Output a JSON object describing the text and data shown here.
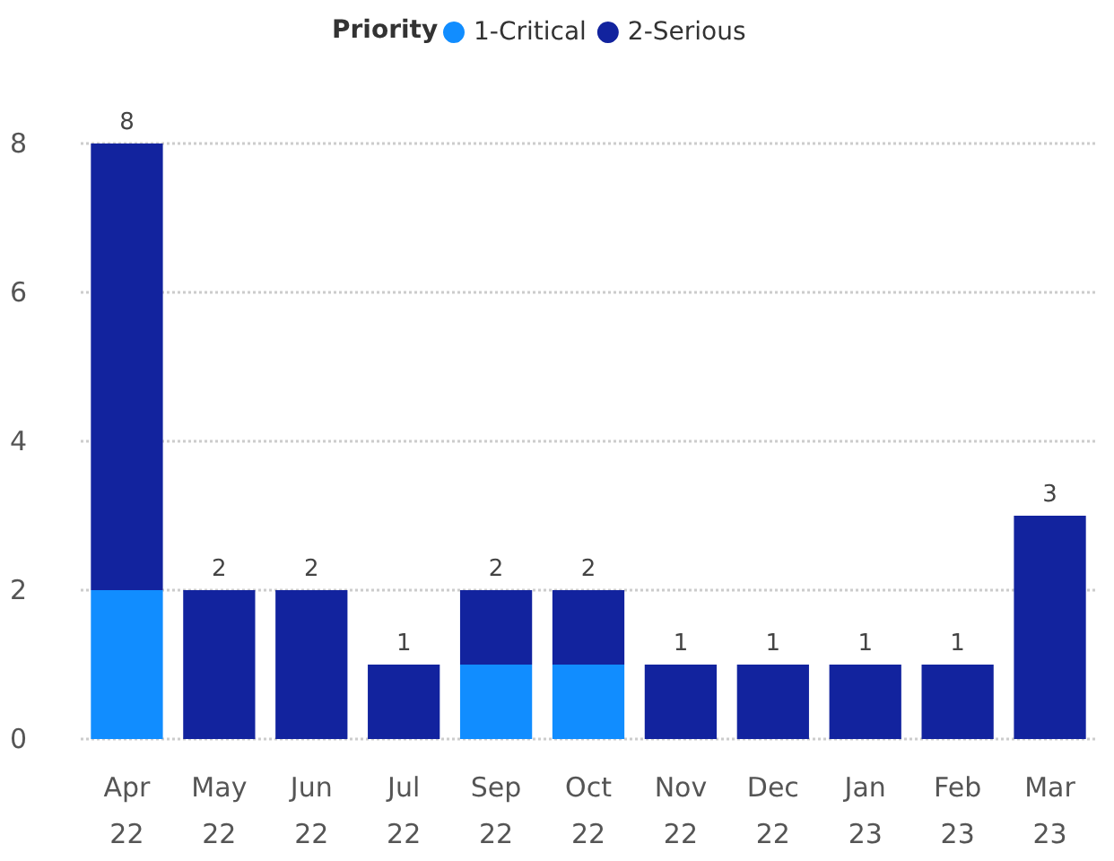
{
  "chart_data": {
    "type": "bar",
    "stacked": true,
    "legend_title": "Priority",
    "legend": "top",
    "categories": [
      "Apr 22",
      "May 22",
      "Jun 22",
      "Jul 22",
      "Sep 22",
      "Oct 22",
      "Nov 22",
      "Dec 22",
      "Jan 23",
      "Feb 23",
      "Mar 23"
    ],
    "series": [
      {
        "name": "1-Critical",
        "color": "#118dff",
        "values": [
          2,
          0,
          0,
          0,
          1,
          1,
          0,
          0,
          0,
          0,
          0
        ]
      },
      {
        "name": "2-Serious",
        "color": "#12239e",
        "values": [
          6,
          2,
          2,
          1,
          1,
          1,
          1,
          1,
          1,
          1,
          3
        ]
      }
    ],
    "totals": [
      "8",
      "2",
      "2",
      "1",
      "2",
      "2",
      "1",
      "1",
      "1",
      "1",
      "3"
    ],
    "ylim": [
      0,
      8
    ],
    "yticks": [
      0,
      2,
      4,
      6,
      8
    ],
    "grid": "y"
  }
}
